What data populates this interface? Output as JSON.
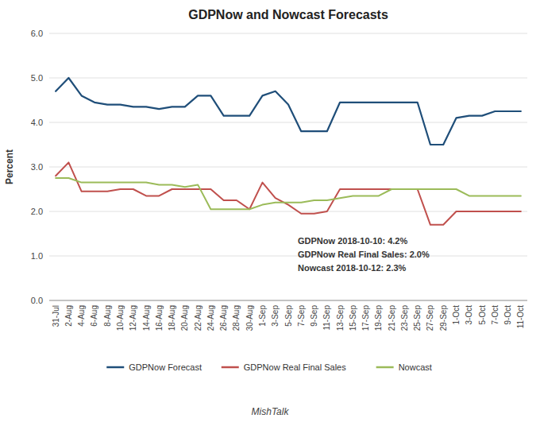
{
  "chart_data": {
    "type": "line",
    "title": "GDPNow and Nowcast Forecasts",
    "y_label": "Percent",
    "footer": "MishTalk",
    "annotations": [
      "GDPNow 2018-10-10: 4.2%",
      "GDPNow Real Final Sales: 2.0%",
      "Nowcast 2018-10-12: 2.3%"
    ],
    "categories": [
      "31-Jul",
      "2-Aug",
      "4-Aug",
      "6-Aug",
      "8-Aug",
      "10-Aug",
      "12-Aug",
      "14-Aug",
      "16-Aug",
      "18-Aug",
      "20-Aug",
      "22-Aug",
      "24-Aug",
      "26-Aug",
      "28-Aug",
      "30-Aug",
      "1-Sep",
      "3-Sep",
      "5-Sep",
      "7-Sep",
      "9-Sep",
      "11-Sep",
      "13-Sep",
      "15-Sep",
      "17-Sep",
      "19-Sep",
      "21-Sep",
      "23-Sep",
      "25-Sep",
      "27-Sep",
      "29-Sep",
      "1-Oct",
      "3-Oct",
      "5-Oct",
      "7-Oct",
      "9-Oct",
      "11-Oct"
    ],
    "series": [
      {
        "name": "GDPNow Forecast",
        "color": "#1f4e79",
        "values": [
          4.7,
          5.0,
          4.6,
          4.45,
          4.4,
          4.4,
          4.35,
          4.35,
          4.3,
          4.35,
          4.35,
          4.6,
          4.6,
          4.15,
          4.15,
          4.15,
          4.6,
          4.7,
          4.4,
          3.8,
          3.8,
          3.8,
          4.45,
          4.45,
          4.45,
          4.45,
          4.45,
          4.45,
          4.45,
          3.5,
          3.5,
          4.1,
          4.15,
          4.15,
          4.25,
          4.25,
          4.25
        ]
      },
      {
        "name": "GDPNow Real Final Sales",
        "color": "#c0504d",
        "values": [
          2.8,
          3.1,
          2.45,
          2.45,
          2.45,
          2.5,
          2.5,
          2.35,
          2.35,
          2.5,
          2.5,
          2.5,
          2.5,
          2.25,
          2.25,
          2.05,
          2.65,
          2.3,
          2.15,
          1.95,
          1.95,
          2.0,
          2.5,
          2.5,
          2.5,
          2.5,
          2.5,
          2.5,
          2.5,
          1.7,
          1.7,
          2.0,
          2.0,
          2.0,
          2.0,
          2.0,
          2.0
        ]
      },
      {
        "name": "Nowcast",
        "color": "#9bbb59",
        "values": [
          2.75,
          2.75,
          2.65,
          2.65,
          2.65,
          2.65,
          2.65,
          2.65,
          2.6,
          2.6,
          2.55,
          2.6,
          2.05,
          2.05,
          2.05,
          2.05,
          2.15,
          2.2,
          2.2,
          2.2,
          2.25,
          2.25,
          2.3,
          2.35,
          2.35,
          2.35,
          2.5,
          2.5,
          2.5,
          2.5,
          2.5,
          2.5,
          2.35,
          2.35,
          2.35,
          2.35,
          2.35
        ]
      }
    ],
    "ylim": [
      0.0,
      6.0
    ],
    "yticks": [
      {
        "value": 0.0,
        "label": "0.0"
      },
      {
        "value": 1.0,
        "label": "1.0"
      },
      {
        "value": 2.0,
        "label": "2.0"
      },
      {
        "value": 3.0,
        "label": "3.0"
      },
      {
        "value": 4.0,
        "label": "4.0"
      },
      {
        "value": 5.0,
        "label": "5.0"
      },
      {
        "value": 6.0,
        "label": "6.0"
      }
    ],
    "grid": true,
    "legend": "bottom"
  }
}
